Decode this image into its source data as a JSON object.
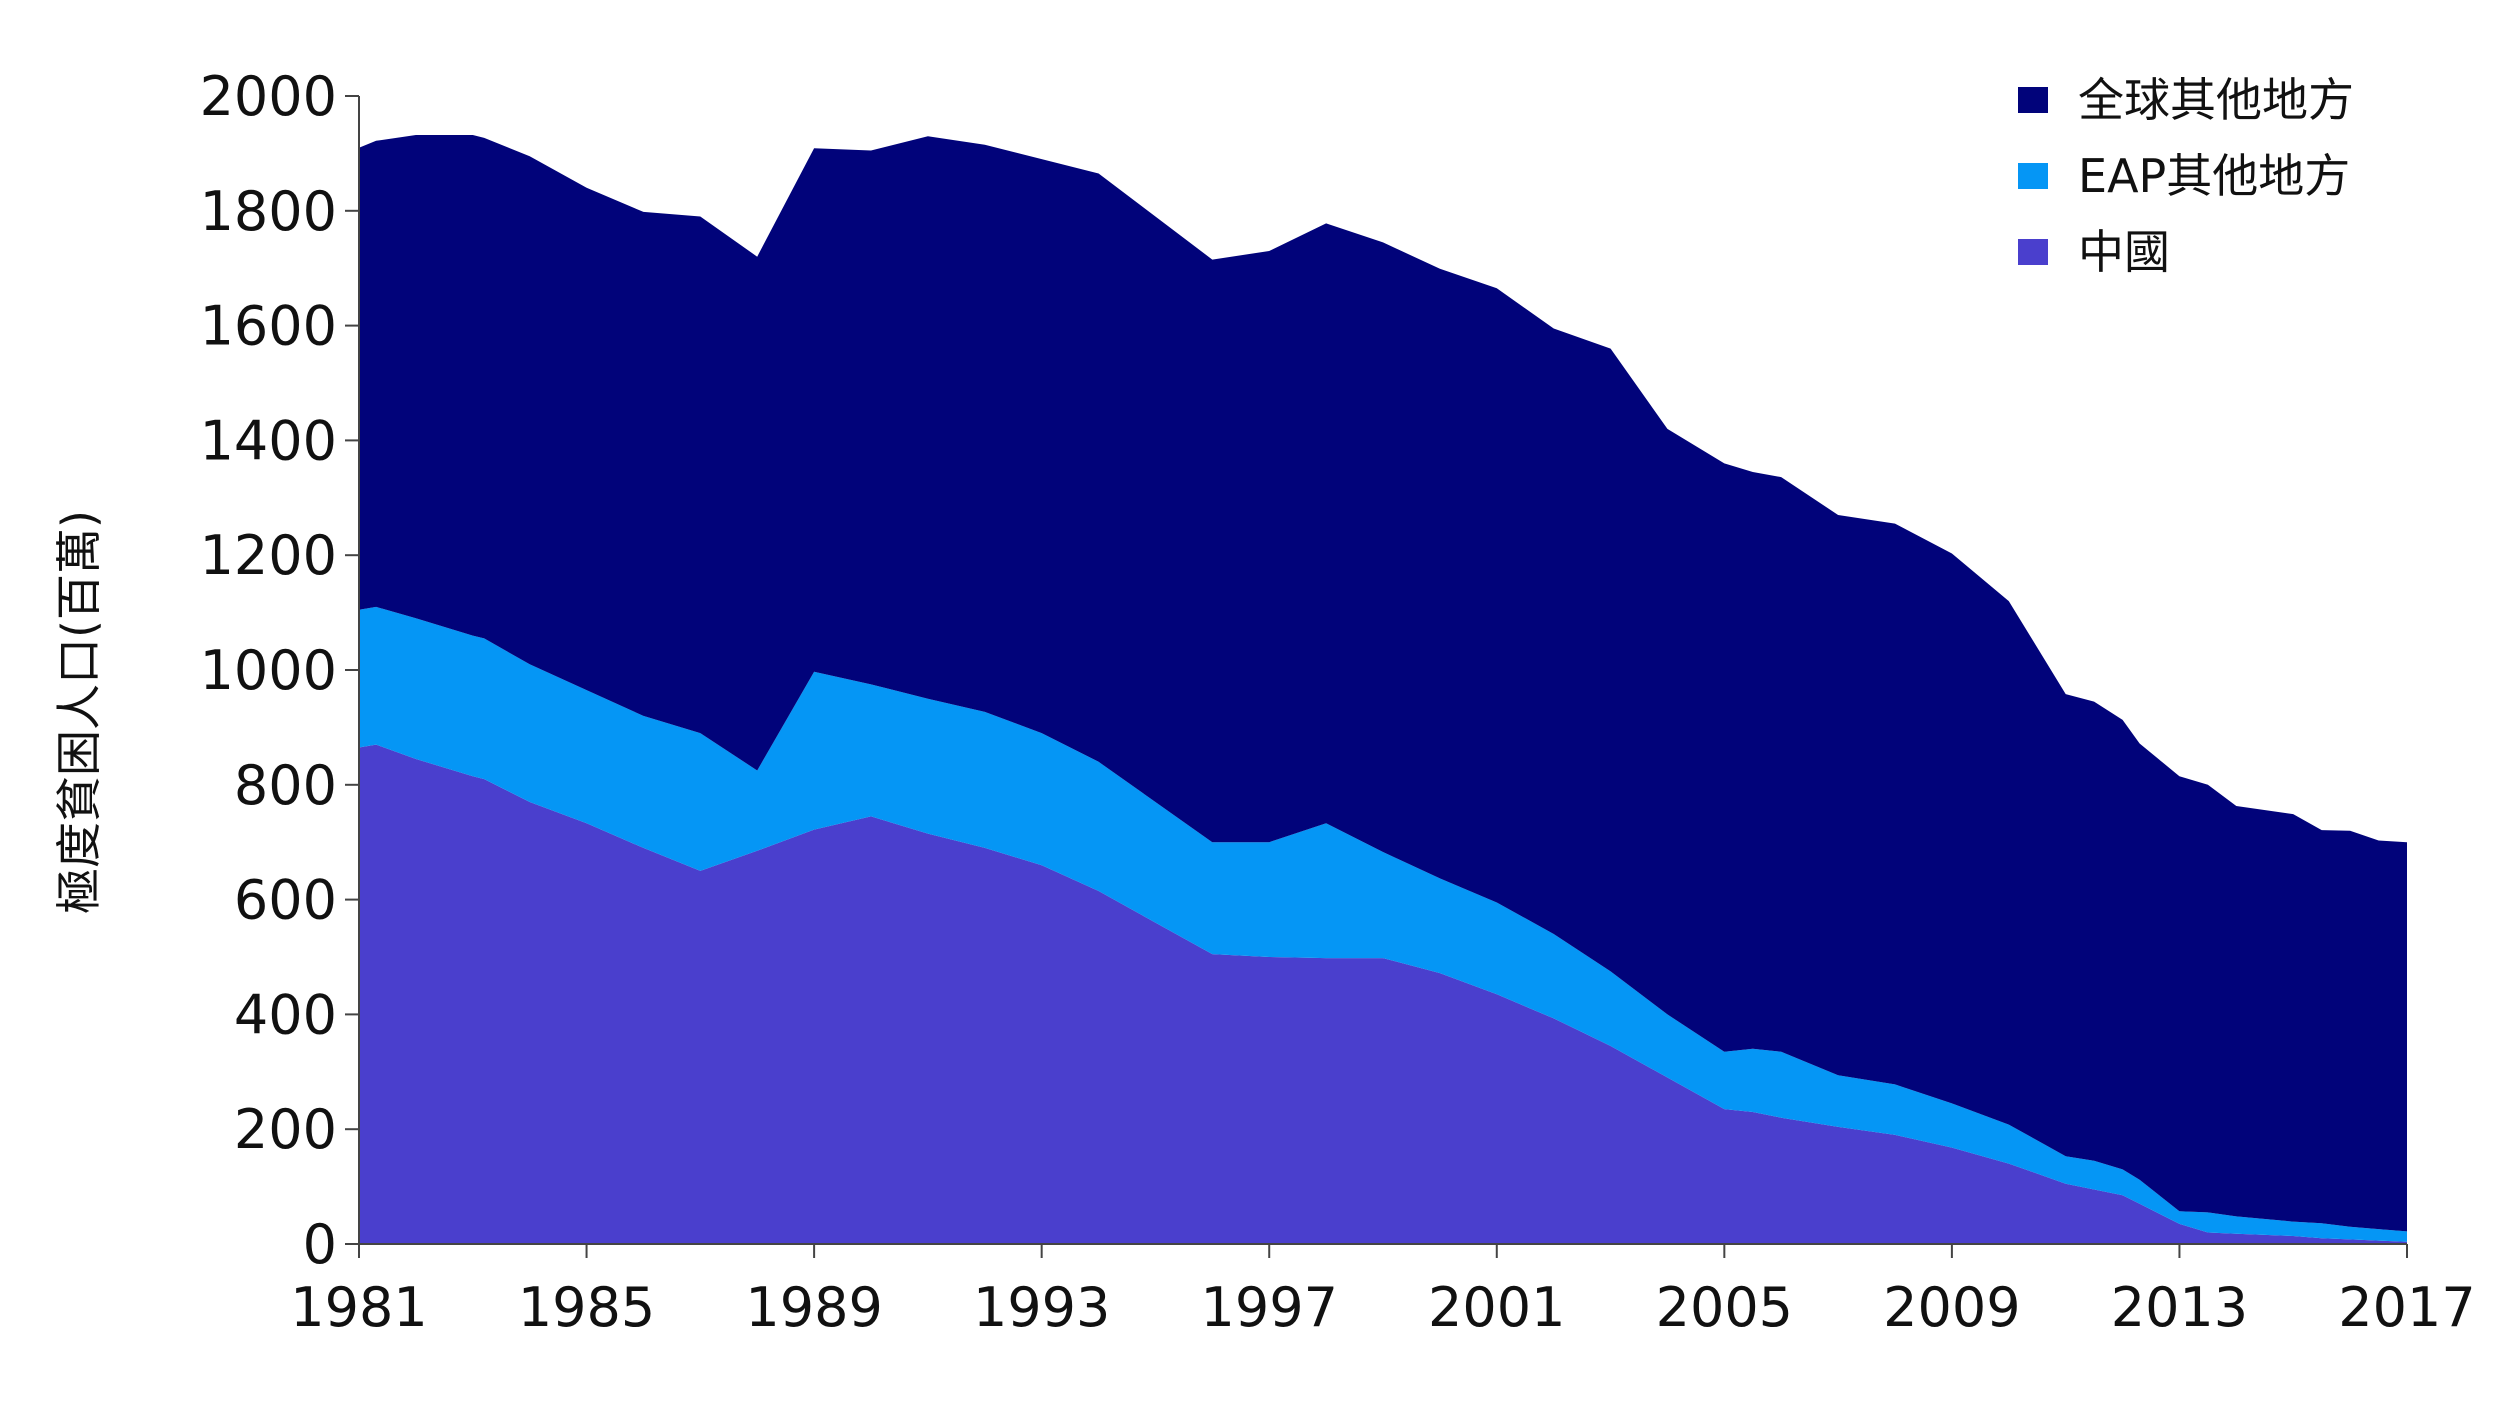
{
  "chart_data": {
    "type": "area",
    "stacked": true,
    "title": "",
    "xlabel": "",
    "ylabel": "極度貧困人口(百萬)",
    "ylim": [
      0,
      2000
    ],
    "yticks": [
      0,
      200,
      400,
      600,
      800,
      1000,
      1200,
      1400,
      1600,
      1800,
      2000
    ],
    "xticks": [
      1981,
      1985,
      1989,
      1993,
      1997,
      2001,
      2005,
      2009,
      2013,
      2017
    ],
    "xlim": [
      1981,
      2017
    ],
    "grid": false,
    "legend_position": "top-right",
    "x": [
      1981,
      1981.3,
      1982,
      1983,
      1983.2,
      1984,
      1985,
      1986,
      1987,
      1988,
      1989,
      1990,
      1991,
      1992,
      1993,
      1994,
      1995,
      1996,
      1997,
      1998,
      1999,
      2000,
      2001,
      2002,
      2003,
      2004,
      2005,
      2005.5,
      2006,
      2007,
      2008,
      2009,
      2010,
      2011,
      2011.5,
      2012,
      2012.3,
      2013,
      2013.5,
      2014,
      2015,
      2015.5,
      2016,
      2016.5,
      2017
    ],
    "series": [
      {
        "name": "中國",
        "color": "#4a3fcd",
        "values": [
          865,
          870,
          845,
          815,
          810,
          770,
          733,
          690,
          650,
          685,
          722,
          745,
          715,
          690,
          660,
          615,
          560,
          505,
          500,
          498,
          498,
          472,
          435,
          393,
          345,
          290,
          235,
          230,
          220,
          204,
          190,
          168,
          140,
          105,
          95,
          85,
          70,
          35,
          20,
          18,
          14,
          10,
          8,
          6,
          4
        ]
      },
      {
        "name": "EAP其他地方",
        "color": "#0596f5",
        "values": [
          240,
          240,
          245,
          245,
          245,
          240,
          232,
          230,
          240,
          140,
          275,
          230,
          235,
          237,
          230,
          225,
          210,
          195,
          200,
          235,
          185,
          165,
          160,
          147,
          130,
          110,
          100,
          110,
          115,
          90,
          88,
          77,
          68,
          48,
          50,
          45,
          42,
          22,
          35,
          30,
          25,
          26,
          22,
          20,
          18
        ]
      },
      {
        "name": "全球其他地方",
        "color": "#01037a",
        "values": [
          805,
          812,
          842,
          872,
          872,
          885,
          875,
          878,
          900,
          895,
          912,
          930,
          980,
          988,
          1000,
          1025,
          1020,
          1015,
          1030,
          1045,
          1062,
          1062,
          1070,
          1055,
          1085,
          1020,
          1025,
          1005,
          1001,
          976,
          977,
          958,
          912,
          805,
          800,
          783,
          760,
          758,
          745,
          715,
          710,
          685,
          690,
          677,
          678
        ]
      }
    ]
  }
}
